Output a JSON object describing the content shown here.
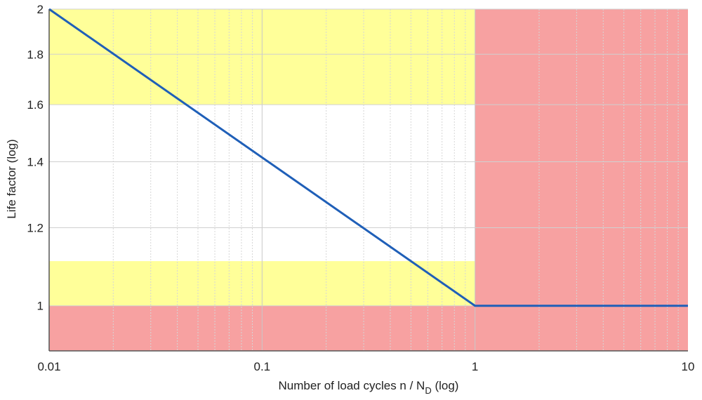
{
  "chart_data": {
    "type": "line",
    "title": "",
    "xlabel": "Number of load cycles n / N",
    "xlabel_sub": "D",
    "xlabel_suffix": " (log)",
    "ylabel": "Life factor (log)",
    "xscale": "log",
    "yscale": "log",
    "xlim": [
      0.01,
      10
    ],
    "ylim": [
      0.9,
      2.0
    ],
    "grid": true,
    "x_ticks": [
      {
        "value": 0.01,
        "label": "0.01"
      },
      {
        "value": 0.1,
        "label": "0.1"
      },
      {
        "value": 1,
        "label": "1"
      },
      {
        "value": 10,
        "label": "10"
      }
    ],
    "y_ticks": [
      {
        "value": 1,
        "label": "1"
      },
      {
        "value": 1.2,
        "label": "1.2"
      },
      {
        "value": 1.4,
        "label": "1.4"
      },
      {
        "value": 1.6,
        "label": "1.6"
      },
      {
        "value": 1.8,
        "label": "1.8"
      },
      {
        "value": 2,
        "label": "2"
      }
    ],
    "regions": [
      {
        "x": [
          0.01,
          1
        ],
        "y": [
          1.6,
          2.0
        ],
        "color": "#ffff99"
      },
      {
        "x": [
          0.01,
          1
        ],
        "y": [
          1.0,
          1.11
        ],
        "color": "#ffff99"
      },
      {
        "x": [
          0.01,
          1
        ],
        "y": [
          0.9,
          1.0
        ],
        "color": "#f7a1a1"
      },
      {
        "x": [
          1,
          10
        ],
        "y": [
          0.9,
          2.0
        ],
        "color": "#f7a1a1"
      }
    ],
    "series": [
      {
        "points": [
          {
            "x": 0.01,
            "y": 2.0
          },
          {
            "x": 1,
            "y": 1.0
          },
          {
            "x": 10,
            "y": 1.0
          }
        ],
        "color": "#1f5fb8",
        "overlay_color": "#5f9e5f"
      }
    ]
  }
}
